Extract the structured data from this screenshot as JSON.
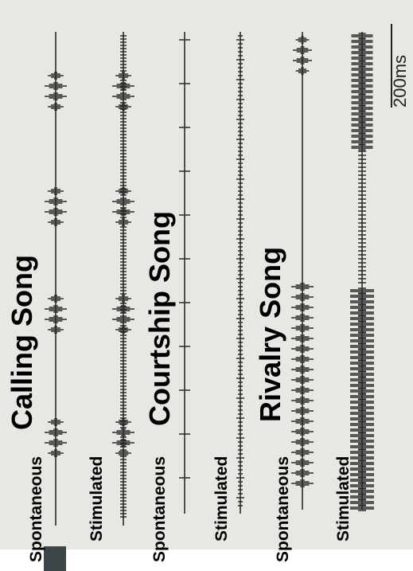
{
  "panels": [
    {
      "title": "Calling Song",
      "traces": [
        {
          "label": "Spontaneous"
        },
        {
          "label": "Stimulated"
        }
      ]
    },
    {
      "title": "Courtship Song",
      "traces": [
        {
          "label": "Spontaneous"
        },
        {
          "label": "Stimulated"
        }
      ]
    },
    {
      "title": "Rivalry Song",
      "traces": [
        {
          "label": "Spontaneous"
        },
        {
          "label": "Stimulated"
        }
      ]
    }
  ],
  "scale_bar": {
    "label": "200ms"
  }
}
